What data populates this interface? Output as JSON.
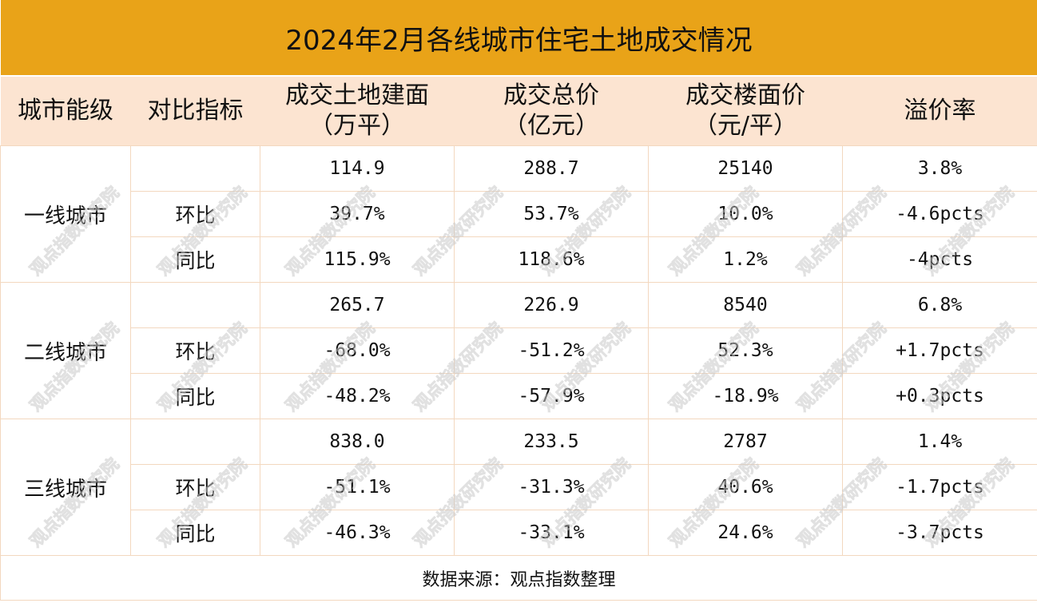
{
  "title": "2024年2月各线城市住宅土地成交情况",
  "headers": {
    "tier": "城市能级",
    "metric": "对比指标",
    "area_line1": "成交土地建面",
    "area_line2": "（万平）",
    "total_line1": "成交总价",
    "total_line2": "（亿元）",
    "price_line1": "成交楼面价",
    "price_line2": "（元/平）",
    "premium": "溢价率"
  },
  "groups": [
    {
      "tier": "一线城市",
      "rows": [
        {
          "metric": "",
          "area": "114.9",
          "total": "288.7",
          "price": "25140",
          "premium": "3.8%"
        },
        {
          "metric": "环比",
          "area": "39.7%",
          "total": "53.7%",
          "price": "10.0%",
          "premium": "-4.6pcts"
        },
        {
          "metric": "同比",
          "area": "115.9%",
          "total": "118.6%",
          "price": "1.2%",
          "premium": "-4pcts"
        }
      ]
    },
    {
      "tier": "二线城市",
      "rows": [
        {
          "metric": "",
          "area": "265.7",
          "total": "226.9",
          "price": "8540",
          "premium": "6.8%"
        },
        {
          "metric": "环比",
          "area": "-68.0%",
          "total": "-51.2%",
          "price": "52.3%",
          "premium": "+1.7pcts"
        },
        {
          "metric": "同比",
          "area": "-48.2%",
          "total": "-57.9%",
          "price": "-18.9%",
          "premium": "+0.3pcts"
        }
      ]
    },
    {
      "tier": "三线城市",
      "rows": [
        {
          "metric": "",
          "area": "838.0",
          "total": "233.5",
          "price": "2787",
          "premium": "1.4%"
        },
        {
          "metric": "环比",
          "area": "-51.1%",
          "total": "-31.3%",
          "price": "40.6%",
          "premium": "-1.7pcts"
        },
        {
          "metric": "同比",
          "area": "-46.3%",
          "total": "-33.1%",
          "price": "24.6%",
          "premium": "-3.7pcts"
        }
      ]
    }
  ],
  "source": "数据来源：观点指数整理",
  "watermark": "观点指数研究院",
  "colors": {
    "title_bg": "#e9a318",
    "header_bg": "#fce4d1",
    "border": "#f3d8bf"
  }
}
